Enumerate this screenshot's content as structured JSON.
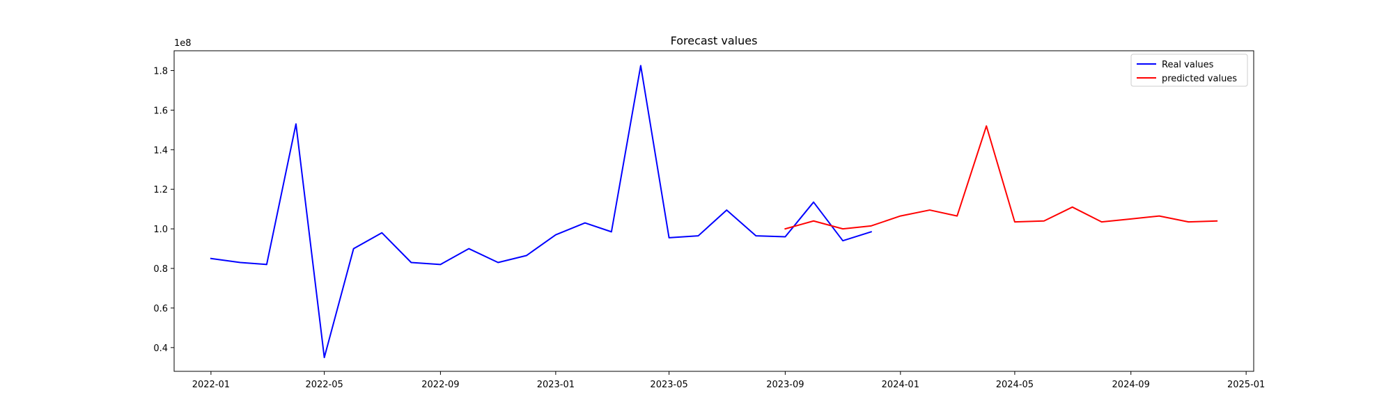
{
  "chart_data": {
    "type": "line",
    "title": "Forecast values",
    "xlabel": "",
    "ylabel": "",
    "y_offset_text": "1e8",
    "x_axis_type": "date",
    "xlim": [
      "2021-11-23",
      "2025-01-09"
    ],
    "ylim": [
      28000000,
      190000000
    ],
    "x_ticks": [
      "2022-01",
      "2022-05",
      "2022-09",
      "2023-01",
      "2023-05",
      "2023-09",
      "2024-01",
      "2024-05",
      "2024-09",
      "2025-01"
    ],
    "y_ticks": [
      {
        "value": 40000000,
        "label": "0.4"
      },
      {
        "value": 60000000,
        "label": "0.6"
      },
      {
        "value": 80000000,
        "label": "0.8"
      },
      {
        "value": 100000000,
        "label": "1.0"
      },
      {
        "value": 120000000,
        "label": "1.2"
      },
      {
        "value": 140000000,
        "label": "1.4"
      },
      {
        "value": 160000000,
        "label": "1.6"
      },
      {
        "value": 180000000,
        "label": "1.8"
      }
    ],
    "grid": false,
    "legend_position": "top-right",
    "series": [
      {
        "name": "Real values",
        "color": "#0000ff",
        "x": [
          "2022-01-01",
          "2022-02-01",
          "2022-03-01",
          "2022-04-01",
          "2022-05-01",
          "2022-06-01",
          "2022-07-01",
          "2022-08-01",
          "2022-09-01",
          "2022-10-01",
          "2022-11-01",
          "2022-12-01",
          "2023-01-01",
          "2023-02-01",
          "2023-03-01",
          "2023-04-01",
          "2023-05-01",
          "2023-06-01",
          "2023-07-01",
          "2023-08-01",
          "2023-09-01",
          "2023-10-01",
          "2023-11-01",
          "2023-12-01"
        ],
        "y": [
          85000000,
          83000000,
          82000000,
          153000000,
          35000000,
          90000000,
          98000000,
          83000000,
          82000000,
          90000000,
          83000000,
          86500000,
          97000000,
          103000000,
          98500000,
          182500000,
          95500000,
          96500000,
          109500000,
          96500000,
          96000000,
          113500000,
          94000000,
          98500000
        ]
      },
      {
        "name": "predicted values",
        "color": "#ff0000",
        "x": [
          "2023-09-01",
          "2023-10-01",
          "2023-11-01",
          "2023-12-01",
          "2024-01-01",
          "2024-02-01",
          "2024-03-01",
          "2024-04-01",
          "2024-05-01",
          "2024-06-01",
          "2024-07-01",
          "2024-08-01",
          "2024-09-01",
          "2024-10-01",
          "2024-11-01",
          "2024-12-01"
        ],
        "y": [
          100000000,
          104000000,
          100000000,
          101500000,
          106500000,
          109500000,
          106500000,
          152000000,
          103500000,
          104000000,
          111000000,
          103500000,
          105000000,
          106500000,
          103500000,
          104000000
        ]
      }
    ]
  }
}
